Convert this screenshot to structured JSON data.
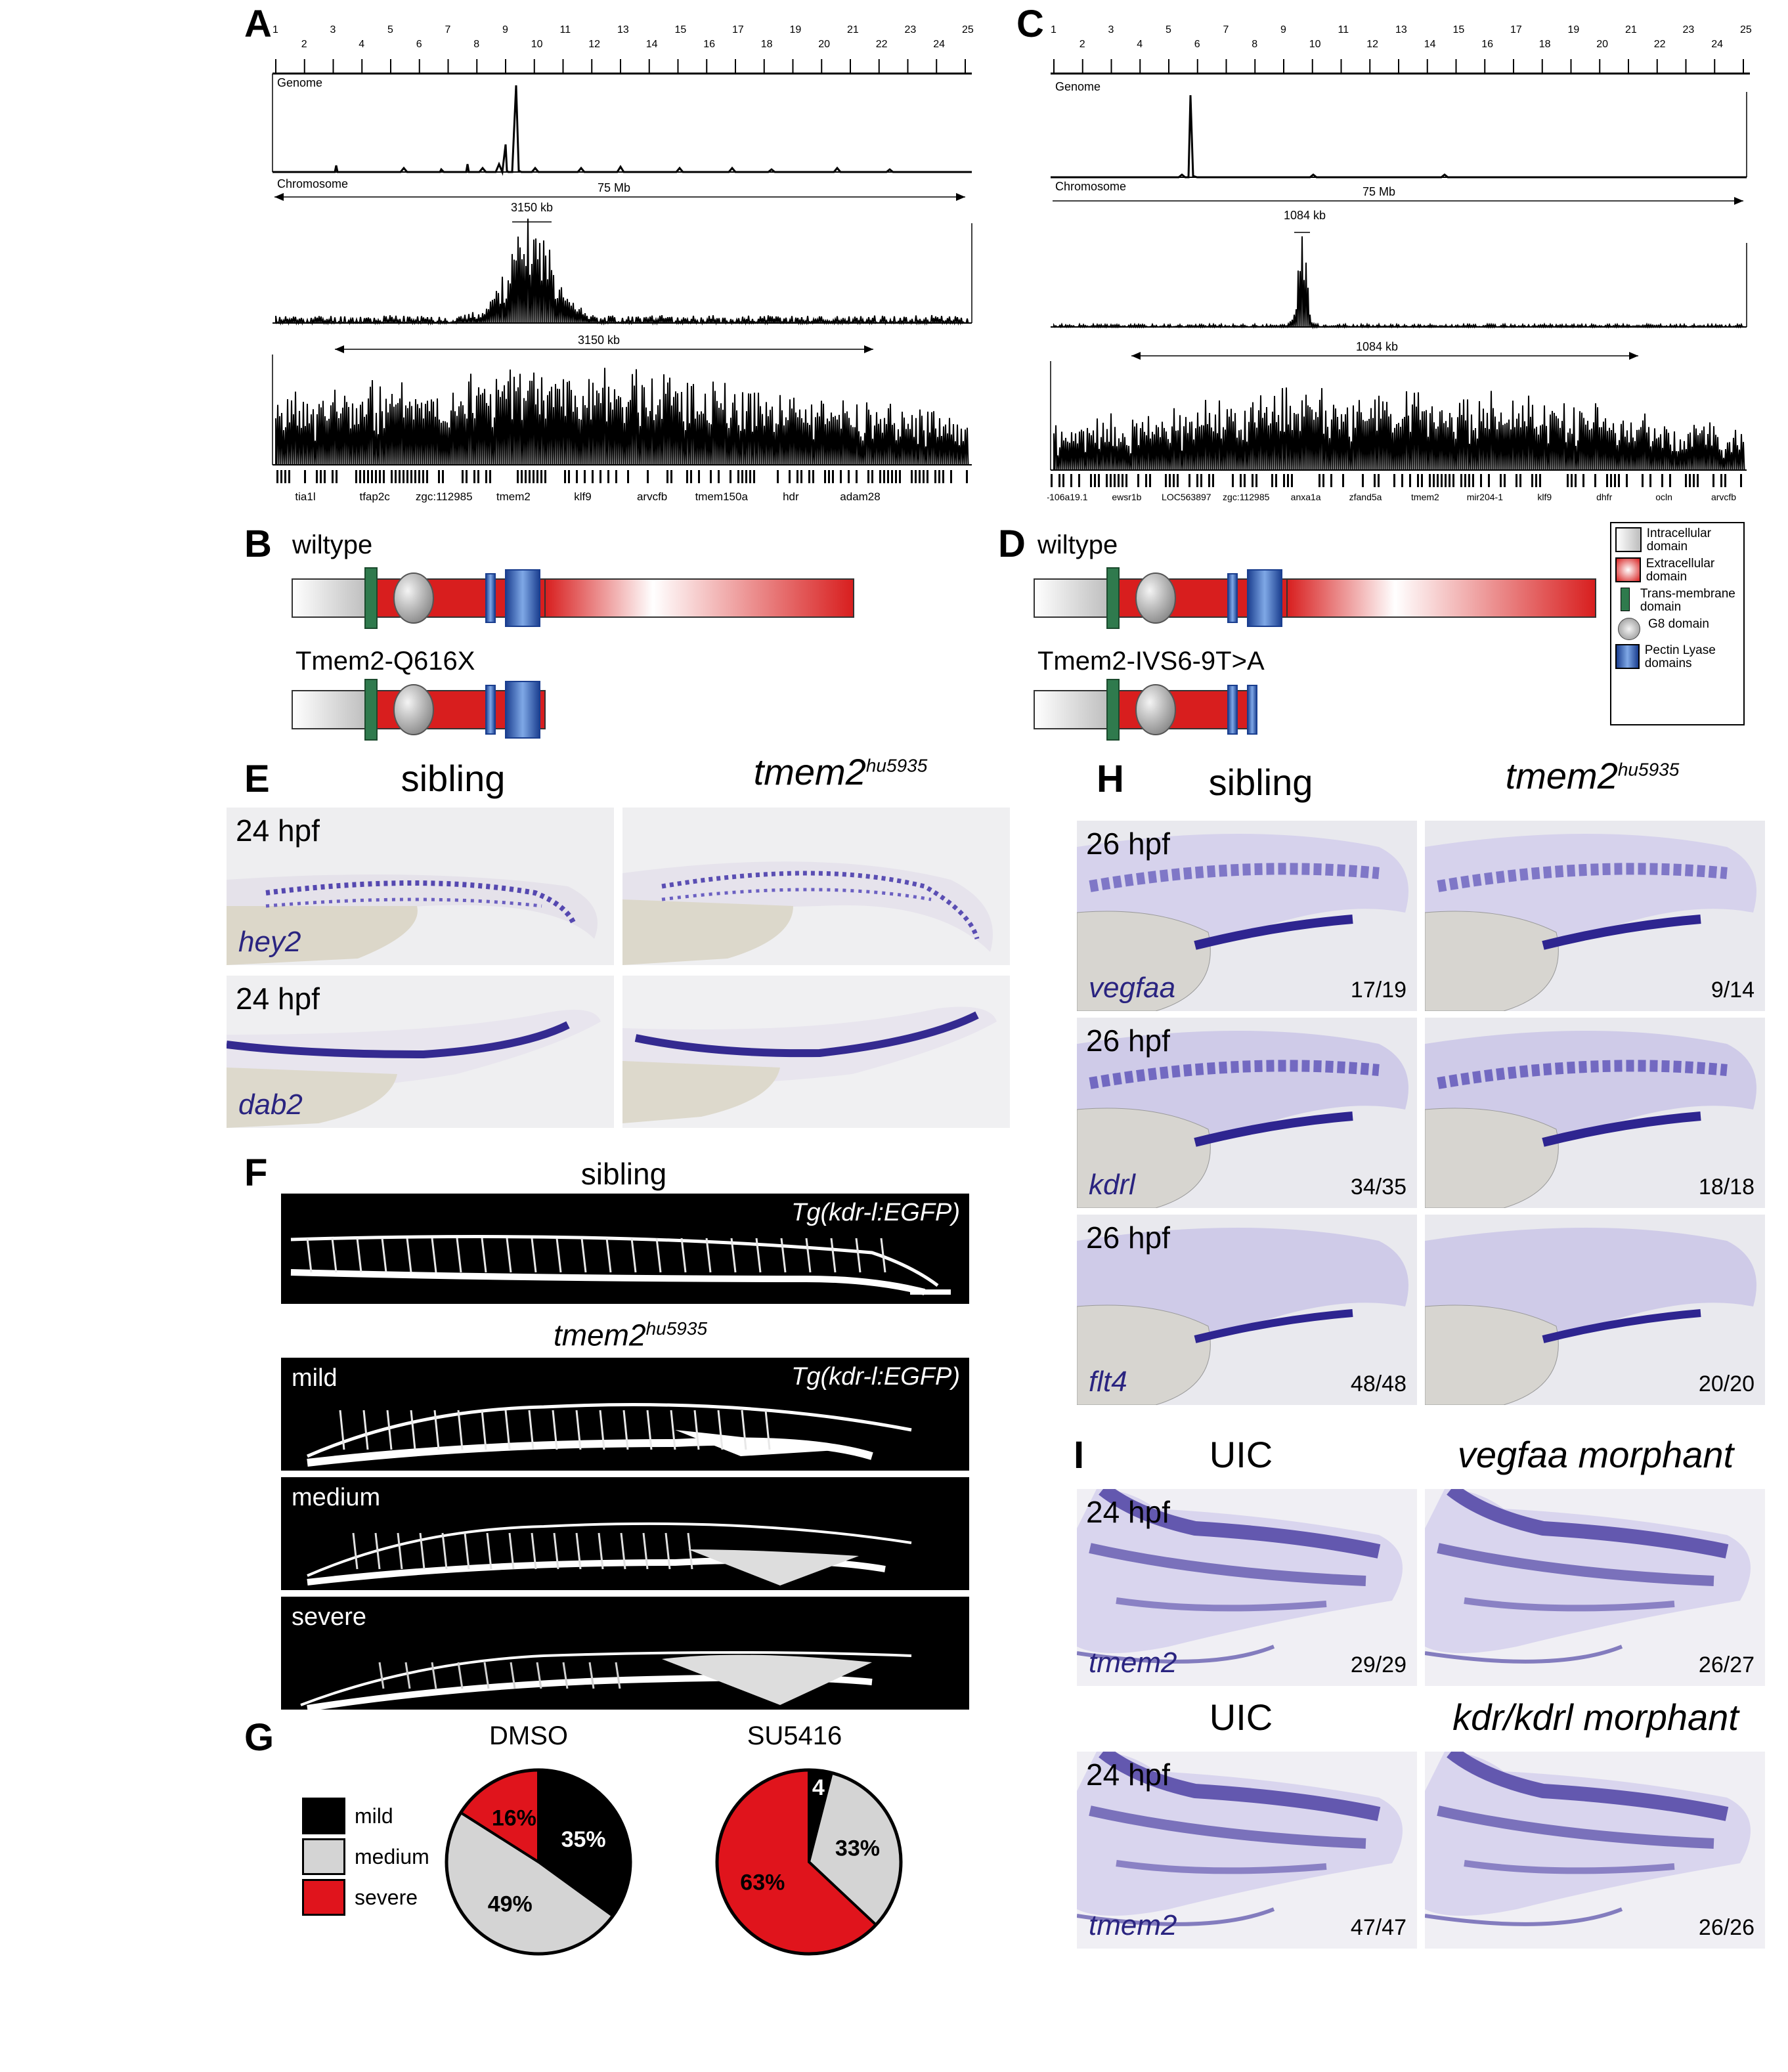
{
  "panel_labels": {
    "A": "A",
    "B": "B",
    "C": "C",
    "D": "D",
    "E": "E",
    "F": "F",
    "G": "G",
    "H": "H",
    "I": "I"
  },
  "mapping_A": {
    "chrom_ticks": [
      "1",
      "2",
      "3",
      "4",
      "5",
      "6",
      "7",
      "8",
      "9",
      "10",
      "11",
      "12",
      "13",
      "14",
      "15",
      "16",
      "17",
      "18",
      "19",
      "20",
      "21",
      "22",
      "23",
      "24",
      "25"
    ],
    "genome_label": "Genome",
    "chromosome_label": "Chromosome",
    "chrom_span": "75 Mb",
    "zoom_span": "3150 kb",
    "detail_span": "3150 kb",
    "genes": [
      "tia1l",
      "tfap2c",
      "zgc:112985",
      "tmem2",
      "klf9",
      "arvcfb",
      "tmem150a",
      "hdr",
      "adam28"
    ]
  },
  "mapping_C": {
    "chrom_ticks": [
      "1",
      "2",
      "3",
      "4",
      "5",
      "6",
      "7",
      "8",
      "9",
      "10",
      "11",
      "12",
      "13",
      "14",
      "15",
      "16",
      "17",
      "18",
      "19",
      "20",
      "21",
      "22",
      "23",
      "24",
      "25"
    ],
    "genome_label": "Genome",
    "chromosome_label": "Chromosome",
    "chrom_span": "75 Mb",
    "zoom_span": "1084 kb",
    "detail_span": "1084 kb",
    "genes": [
      "-106a19.1",
      "ewsr1b",
      "LOC563897",
      "zgc:112985",
      "anxa1a",
      "zfand5a",
      "tmem2",
      "mir204-1",
      "klf9",
      "dhfr",
      "ocln",
      "arvcfb"
    ]
  },
  "domains_B": {
    "wildtype": "wiltype",
    "mutant": "Tmem2-Q616X"
  },
  "domains_D": {
    "wildtype": "wiltype",
    "mutant": "Tmem2-IVS6-9T>A"
  },
  "domain_legend": [
    {
      "label": "Intracellular domain",
      "kind": "intra"
    },
    {
      "label": "Extracellular domain",
      "kind": "extra"
    },
    {
      "label": "Trans-membrane domain",
      "kind": "tm"
    },
    {
      "label": "G8 domain",
      "kind": "g8"
    },
    {
      "label": "Pectin Lyase domains",
      "kind": "pl"
    }
  ],
  "panel_E": {
    "sibling": "sibling",
    "mutant_gene": "tmem2",
    "allele": "hu5935",
    "rows": [
      {
        "stage": "24 hpf",
        "gene": "hey2"
      },
      {
        "stage": "24 hpf",
        "gene": "dab2"
      }
    ]
  },
  "panel_F": {
    "sibling": "sibling",
    "mutant_gene": "tmem2",
    "allele": "hu5935",
    "transgene": "Tg(kdr-l:EGFP)",
    "classes": [
      "mild",
      "medium",
      "severe"
    ]
  },
  "panel_G": {
    "legend": [
      "mild",
      "medium",
      "severe"
    ]
  },
  "chart_data": [
    {
      "type": "pie",
      "title": "DMSO",
      "categories": [
        "mild",
        "medium",
        "severe"
      ],
      "values": [
        35,
        49,
        16
      ],
      "labels": [
        "35%",
        "49%",
        "16%"
      ],
      "colors": [
        "#000000",
        "#d4d4d4",
        "#e0141c"
      ]
    },
    {
      "type": "pie",
      "title": "SU5416",
      "categories": [
        "mild",
        "medium",
        "severe"
      ],
      "values": [
        4,
        33,
        63
      ],
      "labels": [
        "4",
        "33%",
        "63%"
      ],
      "colors": [
        "#000000",
        "#d4d4d4",
        "#e0141c"
      ]
    }
  ],
  "panel_H": {
    "sibling": "sibling",
    "mutant_gene": "tmem2",
    "allele": "hu5935",
    "rows": [
      {
        "stage": "26 hpf",
        "gene": "vegfaa",
        "sib_count": "17/19",
        "mut_count": "9/14"
      },
      {
        "stage": "26 hpf",
        "gene": "kdrl",
        "sib_count": "34/35",
        "mut_count": "18/18"
      },
      {
        "stage": "26 hpf",
        "gene": "flt4",
        "sib_count": "48/48",
        "mut_count": "20/20"
      }
    ]
  },
  "panel_I": {
    "rows": [
      {
        "left_header": "UIC",
        "right_header": "vegfaa morphant",
        "stage": "24 hpf",
        "gene": "tmem2",
        "uic_count": "29/29",
        "mo_count": "26/27"
      },
      {
        "left_header": "UIC",
        "right_header": "kdr/kdrl morphant",
        "stage": "24 hpf",
        "gene": "tmem2",
        "uic_count": "47/47",
        "mo_count": "26/26"
      }
    ]
  },
  "colors": {
    "ish_stain": "#3b2e9a",
    "extracellular": "#d81e1e",
    "intracellular": "#d9d9d9",
    "tm": "#2f7a4d",
    "pectin": "#1e4fa8",
    "severe": "#e0141c"
  }
}
